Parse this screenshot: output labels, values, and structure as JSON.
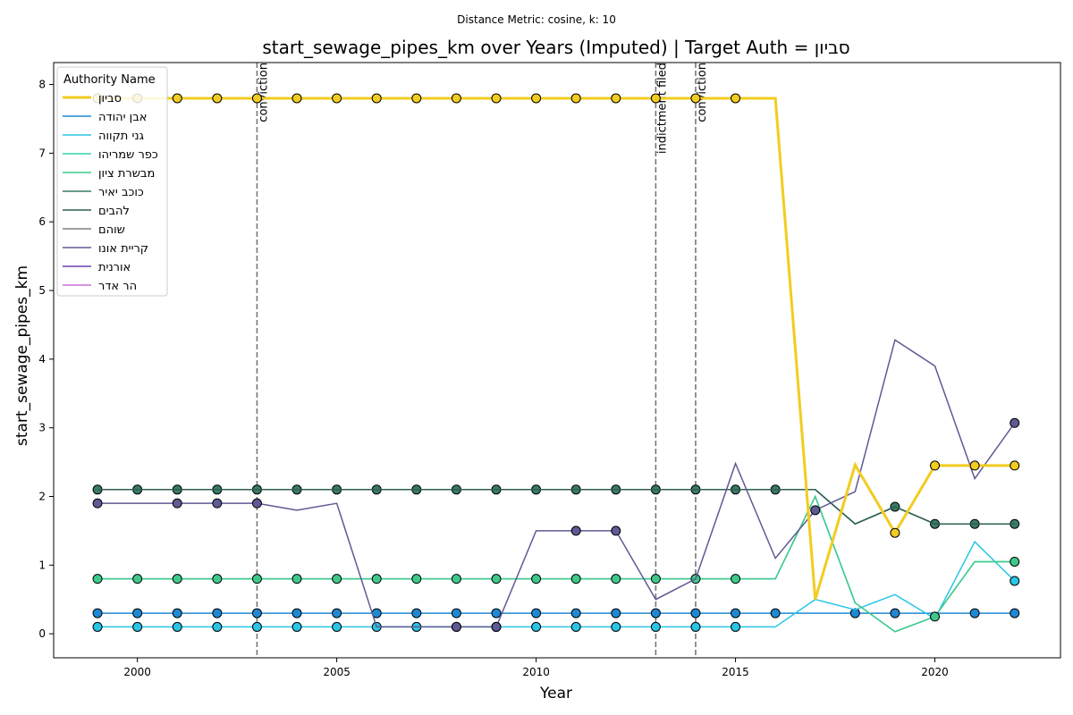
{
  "chart_data": {
    "type": "line",
    "subtitle": "Distance Metric: cosine, k: 10",
    "title": "start_sewage_pipes_km over Years (Imputed) | Target Auth = ןויבס",
    "xlabel": "Year",
    "ylabel": "start_sewage_pipes_km",
    "legend_title": "Authority Name",
    "legend": "upper left",
    "x": [
      1999,
      2000,
      2001,
      2002,
      2003,
      2004,
      2005,
      2006,
      2007,
      2008,
      2009,
      2010,
      2011,
      2012,
      2013,
      2014,
      2015,
      2016,
      2017,
      2018,
      2019,
      2020,
      2021,
      2022
    ],
    "xlim": [
      1997.9,
      2023.15
    ],
    "xticks": [
      2000,
      2005,
      2010,
      2015,
      2020
    ],
    "ylim": [
      -0.35,
      8.32
    ],
    "yticks": [
      0,
      1,
      2,
      3,
      4,
      5,
      6,
      7,
      8
    ],
    "annotations": [
      {
        "x": 2003,
        "text": "conviction"
      },
      {
        "x": 2013,
        "text": "indictment filed"
      },
      {
        "x": 2014,
        "text": "conviction"
      }
    ],
    "series": [
      {
        "name": "ןויבס",
        "color": "#f2cc1f",
        "width": 3,
        "values": [
          7.8,
          7.8,
          7.8,
          7.8,
          7.8,
          7.8,
          7.8,
          7.8,
          7.8,
          7.8,
          7.8,
          7.8,
          7.8,
          7.8,
          7.8,
          7.8,
          7.8,
          7.8,
          0.5,
          2.46,
          1.47,
          2.45,
          2.45,
          2.45
        ],
        "markers": [
          true,
          true,
          true,
          true,
          true,
          true,
          true,
          true,
          true,
          true,
          true,
          true,
          true,
          true,
          true,
          true,
          true,
          false,
          false,
          false,
          true,
          true,
          true,
          true
        ]
      },
      {
        "name": "הדוהי ןבא",
        "color": "#1f88d4",
        "width": 1.5,
        "values": [
          0.3,
          0.3,
          0.3,
          0.3,
          0.3,
          0.3,
          0.3,
          0.3,
          0.3,
          0.3,
          0.3,
          0.3,
          0.3,
          0.3,
          0.3,
          0.3,
          0.3,
          0.3,
          0.3,
          0.3,
          0.3,
          0.3,
          0.3,
          0.3
        ],
        "markers": [
          true,
          true,
          true,
          true,
          true,
          true,
          true,
          true,
          true,
          true,
          true,
          true,
          true,
          true,
          true,
          true,
          true,
          true,
          false,
          true,
          true,
          false,
          true,
          true
        ]
      },
      {
        "name": "הווקת ינג",
        "color": "#29c5e6",
        "width": 1.5,
        "values": [
          0.1,
          0.1,
          0.1,
          0.1,
          0.1,
          0.1,
          0.1,
          0.1,
          0.1,
          0.1,
          0.1,
          0.1,
          0.1,
          0.1,
          0.1,
          0.1,
          0.1,
          0.1,
          0.5,
          0.35,
          0.57,
          0.22,
          1.34,
          0.77
        ],
        "markers": [
          true,
          true,
          true,
          true,
          true,
          true,
          true,
          true,
          true,
          true,
          true,
          true,
          true,
          true,
          true,
          true,
          true,
          false,
          false,
          false,
          false,
          false,
          false,
          true
        ]
      },
      {
        "name": "והירמש רפכ",
        "color": "#2ed3b0",
        "width": 1.5,
        "values": [
          0.8,
          0.8,
          0.8,
          0.8,
          0.8,
          0.8,
          0.8,
          0.8,
          0.8,
          0.8,
          0.8,
          0.8,
          0.8,
          0.8,
          0.8,
          0.8,
          0.8,
          0.8,
          2.0,
          0.45,
          0.03,
          0.25,
          1.05,
          1.05
        ],
        "markers": [
          false,
          false,
          false,
          false,
          false,
          false,
          false,
          false,
          false,
          false,
          false,
          false,
          false,
          false,
          false,
          false,
          false,
          false,
          false,
          false,
          false,
          false,
          false,
          false
        ]
      },
      {
        "name": "ןויצ תרשבמ",
        "color": "#3ec98a",
        "width": 1.5,
        "values": [
          0.8,
          0.8,
          0.8,
          0.8,
          0.8,
          0.8,
          0.8,
          0.8,
          0.8,
          0.8,
          0.8,
          0.8,
          0.8,
          0.8,
          0.8,
          0.8,
          0.8,
          0.8,
          2.0,
          0.45,
          0.03,
          0.25,
          1.05,
          1.05
        ],
        "markers": [
          true,
          true,
          true,
          true,
          true,
          true,
          true,
          true,
          true,
          true,
          true,
          true,
          true,
          true,
          true,
          true,
          true,
          false,
          false,
          false,
          false,
          true,
          false,
          true
        ]
      },
      {
        "name": "ריאי בכוכ",
        "color": "#3a7a6a",
        "width": 1.5,
        "values": [
          2.1,
          2.1,
          2.1,
          2.1,
          2.1,
          2.1,
          2.1,
          2.1,
          2.1,
          2.1,
          2.1,
          2.1,
          2.1,
          2.1,
          2.1,
          2.1,
          2.1,
          2.1,
          2.1,
          1.6,
          1.85,
          1.6,
          1.6,
          1.6
        ],
        "markers": [
          true,
          true,
          true,
          true,
          true,
          true,
          true,
          true,
          true,
          true,
          true,
          true,
          true,
          true,
          true,
          true,
          true,
          true,
          false,
          false,
          true,
          true,
          true,
          true
        ]
      },
      {
        "name": "םיבהל",
        "color": "#2f5f52",
        "width": 1.5,
        "values": [
          2.1,
          2.1,
          2.1,
          2.1,
          2.1,
          2.1,
          2.1,
          2.1,
          2.1,
          2.1,
          2.1,
          2.1,
          2.1,
          2.1,
          2.1,
          2.1,
          2.1,
          2.1,
          2.1,
          1.6,
          1.85,
          1.6,
          1.6,
          1.6
        ],
        "markers": [
          false,
          false,
          false,
          false,
          false,
          false,
          false,
          false,
          false,
          false,
          false,
          false,
          false,
          false,
          false,
          false,
          false,
          false,
          false,
          false,
          false,
          false,
          false,
          false
        ]
      },
      {
        "name": "םהוש",
        "color": "#7f7f7f",
        "width": 1.5,
        "values": [
          null,
          null,
          null,
          null,
          null,
          null,
          null,
          null,
          null,
          null,
          null,
          null,
          null,
          null,
          null,
          null,
          null,
          null,
          null,
          null,
          null,
          null,
          null,
          null
        ],
        "markers": [
          false,
          false,
          false,
          false,
          false,
          false,
          false,
          false,
          false,
          false,
          false,
          false,
          false,
          false,
          false,
          false,
          false,
          false,
          false,
          false,
          false,
          false,
          false,
          false
        ]
      },
      {
        "name": "ונוא תיירק",
        "color": "#5e5a94",
        "width": 1.5,
        "values": [
          1.9,
          1.9,
          1.9,
          1.9,
          1.9,
          1.8,
          1.9,
          0.1,
          0.1,
          0.1,
          0.1,
          1.5,
          1.5,
          1.5,
          0.5,
          0.8,
          2.48,
          1.1,
          1.8,
          2.07,
          4.28,
          3.9,
          2.26,
          3.07
        ],
        "markers": [
          true,
          false,
          true,
          true,
          true,
          false,
          false,
          false,
          false,
          true,
          true,
          false,
          true,
          true,
          false,
          false,
          false,
          false,
          true,
          false,
          false,
          false,
          false,
          true
        ]
      },
      {
        "name": "תינרוא",
        "color": "#6a3fb0",
        "width": 1.5,
        "values": [
          null,
          null,
          null,
          null,
          null,
          null,
          null,
          null,
          null,
          null,
          null,
          null,
          null,
          null,
          null,
          null,
          null,
          null,
          null,
          null,
          null,
          null,
          null,
          null
        ],
        "markers": [
          false,
          false,
          false,
          false,
          false,
          false,
          false,
          false,
          false,
          false,
          false,
          false,
          false,
          false,
          false,
          false,
          false,
          false,
          false,
          false,
          false,
          false,
          false,
          false
        ]
      },
      {
        "name": "רדא רה",
        "color": "#c86dd7",
        "width": 1.5,
        "values": [
          null,
          null,
          null,
          null,
          null,
          null,
          null,
          null,
          null,
          null,
          null,
          null,
          null,
          null,
          null,
          null,
          null,
          null,
          null,
          null,
          null,
          null,
          null,
          null
        ],
        "markers": [
          false,
          false,
          false,
          false,
          false,
          false,
          false,
          false,
          false,
          false,
          false,
          false,
          false,
          false,
          false,
          false,
          false,
          false,
          false,
          false,
          false,
          false,
          false,
          false
        ]
      }
    ]
  }
}
